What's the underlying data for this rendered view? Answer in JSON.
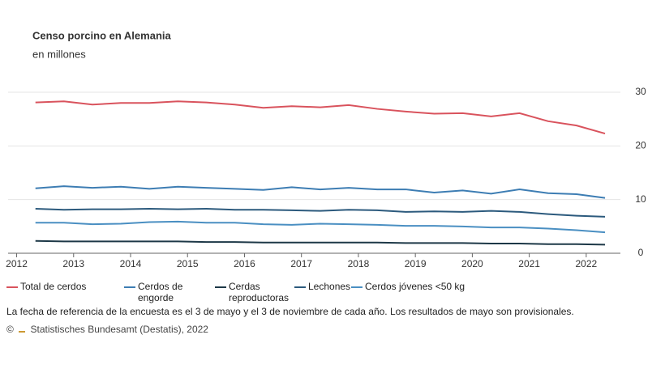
{
  "chart_data": {
    "type": "line",
    "title": "Censo porcino en Alemania",
    "subtitle": "en millones",
    "x": [
      2012.33,
      2012.83,
      2013.33,
      2013.83,
      2014.33,
      2014.83,
      2015.33,
      2015.83,
      2016.33,
      2016.83,
      2017.33,
      2017.83,
      2018.33,
      2018.83,
      2019.33,
      2019.83,
      2020.33,
      2020.83,
      2021.33,
      2021.83,
      2022.33
    ],
    "xlim": [
      2011.85,
      2022.6
    ],
    "xticks": [
      2012,
      2013,
      2014,
      2015,
      2016,
      2017,
      2018,
      2019,
      2020,
      2021,
      2022
    ],
    "ylim": [
      0,
      30
    ],
    "yticks": [
      0,
      10,
      20,
      30
    ],
    "grid": true,
    "series": [
      {
        "name": "Total de cerdos",
        "color": "#d9535d",
        "values": [
          28.1,
          28.3,
          27.7,
          28.0,
          28.0,
          28.3,
          28.1,
          27.7,
          27.1,
          27.4,
          27.2,
          27.6,
          26.9,
          26.4,
          26.0,
          26.1,
          25.5,
          26.1,
          24.6,
          23.8,
          22.3
        ]
      },
      {
        "name": "Cerdos de engorde",
        "color": "#3d7db3",
        "values": [
          12.1,
          12.5,
          12.2,
          12.4,
          12.0,
          12.4,
          12.2,
          12.0,
          11.8,
          12.3,
          11.9,
          12.2,
          11.9,
          11.9,
          11.3,
          11.7,
          11.1,
          11.9,
          11.2,
          11.0,
          10.3
        ]
      },
      {
        "name": "Cerdas reproductoras",
        "color": "#1d3847",
        "values": [
          2.3,
          2.2,
          2.2,
          2.2,
          2.2,
          2.2,
          2.1,
          2.1,
          2.0,
          2.0,
          2.0,
          2.0,
          2.0,
          1.9,
          1.9,
          1.9,
          1.8,
          1.8,
          1.7,
          1.7,
          1.6
        ]
      },
      {
        "name": "Lechones",
        "color": "#2c5a7d",
        "values": [
          8.3,
          8.1,
          8.2,
          8.2,
          8.3,
          8.2,
          8.3,
          8.1,
          8.1,
          8.0,
          7.9,
          8.1,
          8.0,
          7.7,
          7.8,
          7.7,
          7.9,
          7.7,
          7.3,
          7.0,
          6.8
        ]
      },
      {
        "name": "Cerdos jóvenes <50 kg",
        "color": "#4a8fc2",
        "values": [
          5.7,
          5.7,
          5.4,
          5.5,
          5.8,
          5.9,
          5.7,
          5.7,
          5.4,
          5.3,
          5.5,
          5.4,
          5.3,
          5.1,
          5.1,
          5.0,
          4.8,
          4.8,
          4.6,
          4.3,
          3.9
        ]
      }
    ],
    "note": "La fecha de referencia de la encuesta es el 3 de mayo y el 3 de noviembre de cada año. Los resultados de mayo son provisionales.",
    "copyright": "©",
    "source": "Statistisches Bundesamt (Destatis), 2022"
  }
}
